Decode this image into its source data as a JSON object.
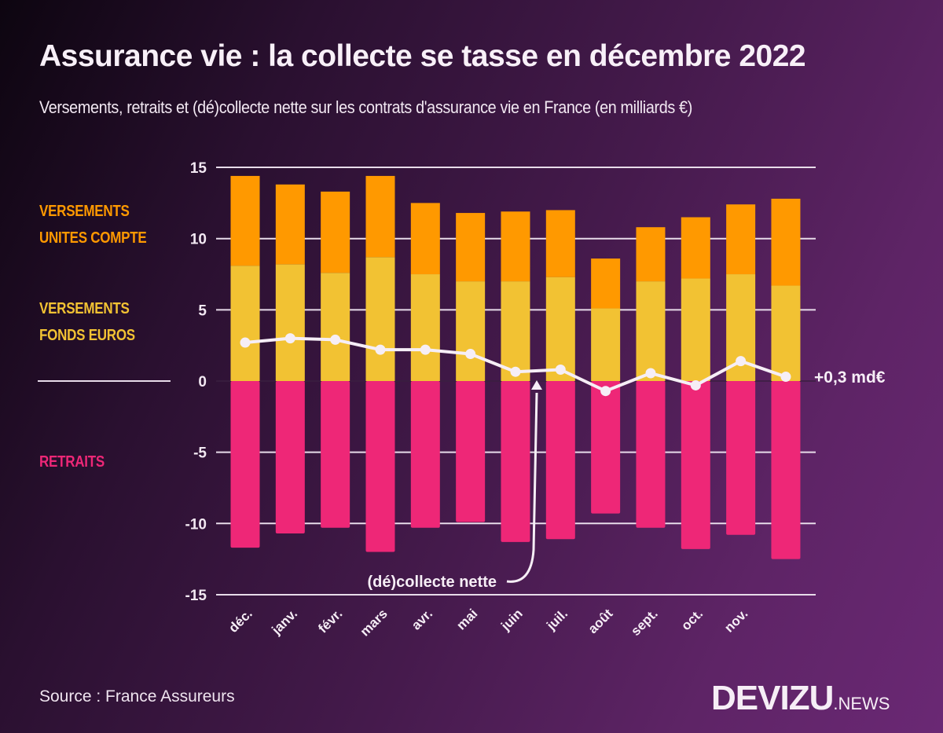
{
  "header": {
    "title": "Assurance vie : la collecte se tasse en décembre 2022",
    "subtitle": "Versements, retraits et (dé)collecte nette sur les contrats d'assurance vie en France (en milliards €)"
  },
  "legend": {
    "unites_compte_line1": "VERSEMENTS",
    "unites_compte_line2": "UNITES COMPTE",
    "fonds_euros_line1": "VERSEMENTS",
    "fonds_euros_line2": "FONDS EUROS",
    "retraits": "RETRAITS"
  },
  "annotations": {
    "net_label": "(dé)collecte nette",
    "last_value_label": "+0,3 md€"
  },
  "footer": {
    "source": "Source : France Assureurs",
    "logo_brand": "DEVIZU",
    "logo_tld": ".NEWS"
  },
  "colors": {
    "unites_compte": "#ff9900",
    "fonds_euros": "#f2c233",
    "retraits": "#ee2777",
    "net_line": "#f6eef6",
    "grid": "#e8dcea"
  },
  "chart_data": {
    "type": "bar",
    "stacked": true,
    "title": "Assurance vie : la collecte se tasse en décembre 2022",
    "subtitle": "Versements, retraits et (dé)collecte nette sur les contrats d'assurance vie en France (en milliards €)",
    "xlabel": "",
    "ylabel": "milliards €",
    "ylim": [
      -15,
      15
    ],
    "yticks": [
      15,
      10,
      5,
      0,
      -5,
      -10,
      -15
    ],
    "grid": true,
    "categories": [
      "déc.",
      "janv.",
      "févr.",
      "mars",
      "avr.",
      "mai",
      "juin",
      "juil.",
      "août",
      "sept.",
      "oct.",
      "nov.",
      ""
    ],
    "series": [
      {
        "name": "Versements fonds euros",
        "type": "bar",
        "values": [
          8.1,
          8.2,
          7.6,
          8.7,
          7.5,
          7.0,
          7.0,
          7.3,
          5.1,
          7.0,
          7.2,
          7.5,
          6.7
        ]
      },
      {
        "name": "Versements unités de compte",
        "type": "bar",
        "values": [
          6.3,
          5.6,
          5.7,
          5.7,
          5.0,
          4.8,
          4.9,
          4.7,
          3.5,
          3.8,
          4.3,
          4.9,
          6.1
        ]
      },
      {
        "name": "Retraits",
        "type": "bar",
        "values": [
          -11.7,
          -10.7,
          -10.3,
          -12.0,
          -10.3,
          -9.9,
          -11.3,
          -11.1,
          -9.3,
          -10.3,
          -11.8,
          -10.8,
          -12.5
        ]
      },
      {
        "name": "(dé)collecte nette",
        "type": "line",
        "values": [
          2.7,
          3.0,
          2.9,
          2.2,
          2.2,
          1.9,
          0.65,
          0.8,
          -0.7,
          0.55,
          -0.3,
          1.4,
          0.3
        ]
      }
    ],
    "annotations": [
      "(dé)collecte nette",
      "+0,3 md€"
    ],
    "source": "France Assureurs"
  }
}
